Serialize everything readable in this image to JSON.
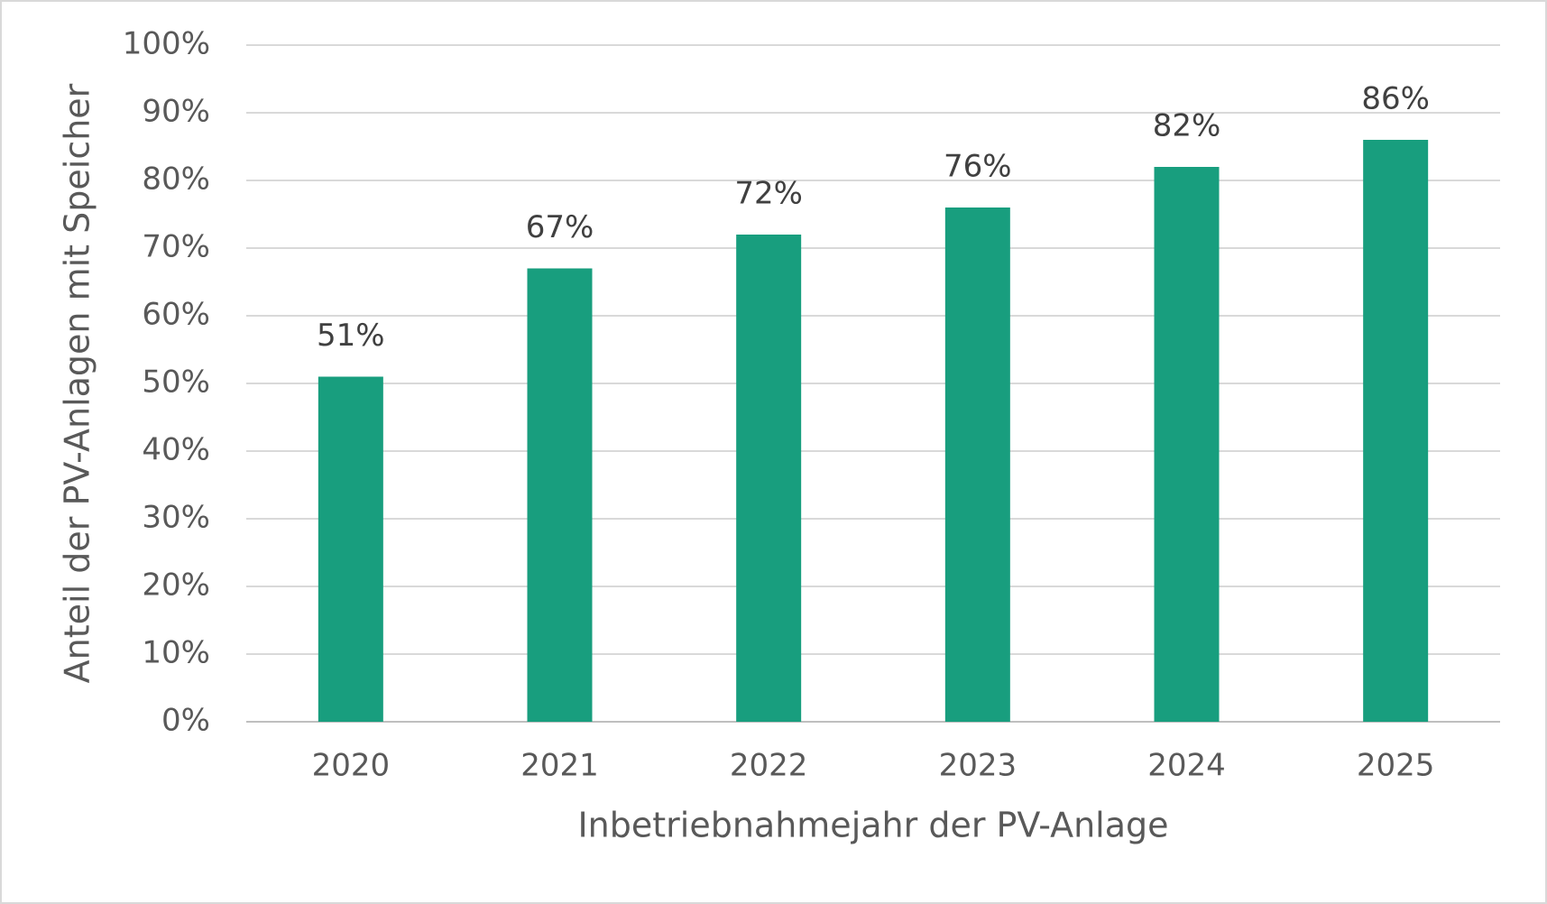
{
  "chart_data": {
    "type": "bar",
    "x_label": "Inbetriebnahmejahr der PV-Anlage",
    "y_label": "Anteil der PV-Anlagen mit Speicher",
    "categories": [
      "2020",
      "2021",
      "2022",
      "2023",
      "2024",
      "2025"
    ],
    "values": [
      51,
      67,
      72,
      76,
      82,
      86
    ],
    "value_labels": [
      "51%",
      "67%",
      "72%",
      "76%",
      "82%",
      "86%"
    ],
    "color": "#189e7e",
    "ylim": [
      0,
      100
    ],
    "yticks": [
      {
        "value": 0,
        "label": "0%"
      },
      {
        "value": 10,
        "label": "10%"
      },
      {
        "value": 20,
        "label": "20%"
      },
      {
        "value": 30,
        "label": "30%"
      },
      {
        "value": 40,
        "label": "40%"
      },
      {
        "value": 50,
        "label": "50%"
      },
      {
        "value": 60,
        "label": "60%"
      },
      {
        "value": 70,
        "label": "70%"
      },
      {
        "value": 80,
        "label": "80%"
      },
      {
        "value": 90,
        "label": "90%"
      },
      {
        "value": 100,
        "label": "100%"
      }
    ],
    "grid": true
  }
}
